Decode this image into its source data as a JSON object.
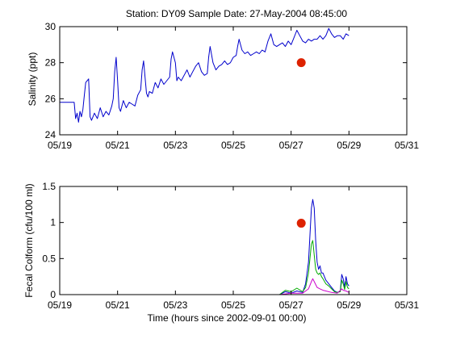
{
  "figure": {
    "title": "Station: DY09  Sample Date: 27-May-2004 08:45:00",
    "xlabel": "Time (hours since 2002-09-01 00:00)"
  },
  "chart_data": [
    {
      "type": "line",
      "title": "Station: DY09  Sample Date: 27-May-2004 08:45:00",
      "xlabel": "",
      "ylabel": "Salinity (ppt)",
      "x_ticks": [
        "05/19",
        "05/21",
        "05/23",
        "05/25",
        "05/27",
        "05/29",
        "05/31"
      ],
      "y_ticks": [
        "24",
        "26",
        "28",
        "30"
      ],
      "xlim": [
        19,
        31
      ],
      "ylim": [
        24,
        30
      ],
      "grid": false,
      "series": [
        {
          "color": "#0000cc",
          "x": [
            19.0,
            19.5,
            19.55,
            19.6,
            19.65,
            19.7,
            19.75,
            19.8,
            19.85,
            19.9,
            20.0,
            20.05,
            20.1,
            20.2,
            20.3,
            20.4,
            20.5,
            20.6,
            20.7,
            20.8,
            20.85,
            20.9,
            20.95,
            21.0,
            21.05,
            21.1,
            21.2,
            21.3,
            21.4,
            21.5,
            21.6,
            21.7,
            21.8,
            21.85,
            21.9,
            21.95,
            22.0,
            22.05,
            22.1,
            22.2,
            22.3,
            22.4,
            22.5,
            22.6,
            22.7,
            22.8,
            22.85,
            22.9,
            23.0,
            23.05,
            23.1,
            23.2,
            23.3,
            23.4,
            23.5,
            23.6,
            23.7,
            23.8,
            23.9,
            24.0,
            24.1,
            24.15,
            24.2,
            24.3,
            24.4,
            24.5,
            24.6,
            24.7,
            24.8,
            24.9,
            25.0,
            25.1,
            25.15,
            25.2,
            25.3,
            25.4,
            25.5,
            25.6,
            25.7,
            25.8,
            25.9,
            26.0,
            26.1,
            26.2,
            26.3,
            26.4,
            26.5,
            26.6,
            26.7,
            26.8,
            26.9,
            27.0,
            27.1,
            27.2,
            27.3,
            27.4,
            27.5,
            27.6,
            27.7,
            27.8,
            27.9,
            28.0,
            28.1,
            28.2,
            28.3,
            28.4,
            28.5,
            28.6,
            28.7,
            28.8,
            28.9,
            29.0
          ],
          "y": [
            25.8,
            25.8,
            24.9,
            25.2,
            24.7,
            25.3,
            25.0,
            25.4,
            26.2,
            26.9,
            27.1,
            25.0,
            24.8,
            25.2,
            24.9,
            25.5,
            25.0,
            25.3,
            25.1,
            25.6,
            26.0,
            27.5,
            28.3,
            27.0,
            25.5,
            25.3,
            25.9,
            25.5,
            25.8,
            25.7,
            25.6,
            26.2,
            26.5,
            27.6,
            28.1,
            27.2,
            26.3,
            26.1,
            26.4,
            26.3,
            26.9,
            26.6,
            27.1,
            26.8,
            27.0,
            27.2,
            28.2,
            28.6,
            28.0,
            27.0,
            27.2,
            27.0,
            27.3,
            27.6,
            27.2,
            27.5,
            27.8,
            28.0,
            27.5,
            27.3,
            27.4,
            28.3,
            28.9,
            28.0,
            27.6,
            27.8,
            27.9,
            28.1,
            27.9,
            28.0,
            28.3,
            28.4,
            28.9,
            29.3,
            28.7,
            28.5,
            28.6,
            28.4,
            28.5,
            28.6,
            28.5,
            28.7,
            28.6,
            29.2,
            29.6,
            29.0,
            28.9,
            29.0,
            29.1,
            28.9,
            29.2,
            29.0,
            29.4,
            29.8,
            29.5,
            29.2,
            29.1,
            29.3,
            29.2,
            29.3,
            29.3,
            29.5,
            29.3,
            29.5,
            29.9,
            29.6,
            29.4,
            29.5,
            29.5,
            29.3,
            29.6,
            29.5
          ]
        }
      ],
      "sample_points": [
        {
          "x": 27.35,
          "y": 28.0,
          "color": "#dd2200"
        }
      ]
    },
    {
      "type": "line",
      "title": "",
      "xlabel": "Time (hours since 2002-09-01 00:00)",
      "ylabel": "Fecal Colform (cfu/100 ml)",
      "x_ticks": [
        "05/19",
        "05/21",
        "05/23",
        "05/25",
        "05/27",
        "05/29",
        "05/31"
      ],
      "y_ticks": [
        "0",
        "0.5",
        "1",
        "1.5"
      ],
      "xlim": [
        19,
        31
      ],
      "ylim": [
        0,
        1.5
      ],
      "grid": false,
      "series": [
        {
          "color": "#0000cc",
          "x": [
            19.0,
            26.6,
            26.8,
            27.0,
            27.2,
            27.4,
            27.5,
            27.6,
            27.7,
            27.75,
            27.8,
            27.85,
            27.9,
            27.95,
            28.0,
            28.05,
            28.1,
            28.2,
            28.3,
            28.4,
            28.5,
            28.6,
            28.7,
            28.75,
            28.8,
            28.85,
            28.9,
            28.95,
            29.0
          ],
          "y": [
            0.0,
            0.0,
            0.04,
            0.02,
            0.05,
            0.03,
            0.15,
            0.45,
            1.2,
            1.32,
            1.2,
            0.75,
            0.45,
            0.35,
            0.4,
            0.3,
            0.3,
            0.2,
            0.15,
            0.1,
            0.05,
            0.03,
            0.05,
            0.28,
            0.22,
            0.1,
            0.25,
            0.15,
            0.12
          ]
        },
        {
          "color": "#00aa00",
          "x": [
            19.0,
            26.6,
            26.8,
            27.0,
            27.2,
            27.4,
            27.5,
            27.6,
            27.7,
            27.75,
            27.8,
            27.85,
            27.9,
            27.95,
            28.0,
            28.05,
            28.1,
            28.2,
            28.3,
            28.4,
            28.5,
            28.6,
            28.7,
            28.75,
            28.8,
            28.85,
            28.9,
            28.95,
            29.0
          ],
          "y": [
            0.0,
            0.0,
            0.06,
            0.04,
            0.09,
            0.04,
            0.1,
            0.3,
            0.7,
            0.75,
            0.55,
            0.35,
            0.3,
            0.28,
            0.3,
            0.25,
            0.22,
            0.15,
            0.12,
            0.08,
            0.04,
            0.03,
            0.04,
            0.2,
            0.15,
            0.07,
            0.18,
            0.1,
            0.08
          ]
        },
        {
          "color": "#cc00cc",
          "x": [
            19.0,
            26.6,
            27.0,
            27.4,
            27.6,
            27.7,
            27.75,
            27.8,
            27.85,
            27.9,
            28.0,
            28.1,
            28.2,
            28.4,
            28.6,
            28.75,
            28.8,
            28.9,
            29.0
          ],
          "y": [
            0.0,
            0.0,
            0.02,
            0.02,
            0.08,
            0.18,
            0.22,
            0.18,
            0.14,
            0.1,
            0.08,
            0.06,
            0.05,
            0.03,
            0.02,
            0.08,
            0.06,
            0.05,
            0.03
          ]
        }
      ],
      "sample_points": [
        {
          "x": 27.35,
          "y": 0.99,
          "color": "#dd2200"
        }
      ]
    }
  ]
}
